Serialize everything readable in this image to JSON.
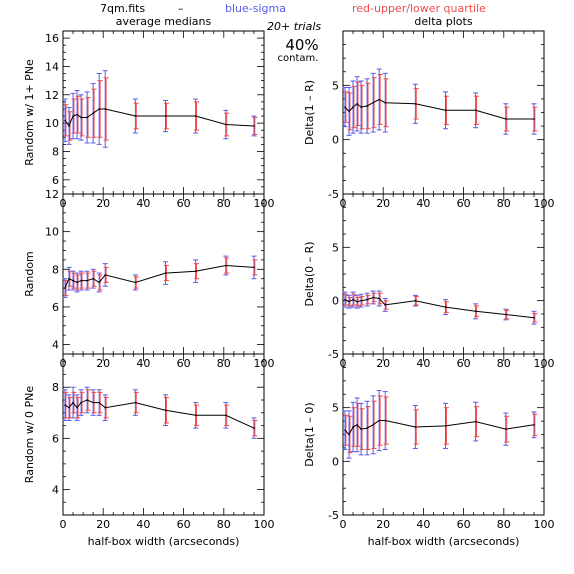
{
  "header": {
    "file": "7qm.fits",
    "dash": "–",
    "blue_note": "blue-sigma",
    "red_note": "red-upper/lower quartile",
    "trials": "20+ trials",
    "contam_pct": "40%",
    "contam_word": "contam."
  },
  "colors": {
    "line": "#000000",
    "sigma": "#5a5af0",
    "quartile": "#f04a4a"
  },
  "chart_data": [
    {
      "type": "line",
      "title": "average medians",
      "ylabel": "Random w/ 1+ PNe",
      "xlabel": "",
      "xlim": [
        0,
        100
      ],
      "ylim": [
        5,
        16.5
      ],
      "xticks": [
        0,
        20,
        40,
        60,
        80,
        100
      ],
      "yticks": [
        6,
        8,
        10,
        12,
        14,
        16
      ],
      "x": [
        1,
        3,
        5,
        7,
        9,
        12,
        15,
        18,
        21,
        36,
        51,
        66,
        81,
        95
      ],
      "y": [
        10.2,
        9.8,
        10.5,
        10.6,
        10.4,
        10.4,
        10.7,
        11.0,
        11.0,
        10.5,
        10.5,
        10.5,
        9.9,
        9.8
      ],
      "sigma": [
        1.5,
        1.3,
        1.6,
        1.7,
        1.6,
        1.8,
        2.1,
        2.5,
        2.7,
        1.2,
        1.1,
        1.2,
        1.0,
        0.7
      ],
      "quartile": [
        1.1,
        1.0,
        1.2,
        1.3,
        1.3,
        1.4,
        1.7,
        2.0,
        2.2,
        0.9,
        0.9,
        1.0,
        0.8,
        0.6
      ]
    },
    {
      "type": "line",
      "title": "delta plots",
      "ylabel": "Delta(1 – R)",
      "xlabel": "",
      "xlim": [
        0,
        100
      ],
      "ylim": [
        -5,
        10
      ],
      "xticks": [
        0,
        20,
        40,
        60,
        80,
        100
      ],
      "yticks": [
        -5,
        0,
        5
      ],
      "x": [
        1,
        3,
        5,
        7,
        9,
        12,
        15,
        18,
        21,
        36,
        51,
        66,
        81,
        95
      ],
      "y": [
        3.0,
        2.6,
        3.0,
        3.3,
        3.0,
        3.1,
        3.4,
        3.7,
        3.4,
        3.3,
        2.7,
        2.7,
        1.9,
        1.9
      ],
      "sigma": [
        1.8,
        2.2,
        2.4,
        2.5,
        2.4,
        2.5,
        2.7,
        2.8,
        2.7,
        1.8,
        1.7,
        1.6,
        1.4,
        1.4
      ],
      "quartile": [
        1.4,
        1.7,
        1.9,
        2.0,
        2.0,
        2.1,
        2.3,
        2.3,
        2.2,
        1.4,
        1.3,
        1.3,
        1.1,
        1.1
      ]
    },
    {
      "type": "line",
      "title": "",
      "ylabel": "Random",
      "xlabel": "",
      "xlim": [
        0,
        100
      ],
      "ylim": [
        3.5,
        12
      ],
      "xticks": [
        0,
        20,
        40,
        60,
        80,
        100
      ],
      "yticks": [
        4,
        6,
        8,
        10,
        12
      ],
      "x": [
        1,
        3,
        5,
        7,
        9,
        12,
        15,
        18,
        21,
        36,
        51,
        66,
        81,
        95
      ],
      "y": [
        7.0,
        7.5,
        7.4,
        7.3,
        7.4,
        7.4,
        7.5,
        7.3,
        7.7,
        7.3,
        7.8,
        7.9,
        8.2,
        8.1
      ],
      "sigma": [
        0.5,
        0.6,
        0.5,
        0.5,
        0.5,
        0.5,
        0.5,
        0.5,
        0.6,
        0.4,
        0.6,
        0.6,
        0.5,
        0.6
      ],
      "quartile": [
        0.4,
        0.4,
        0.4,
        0.4,
        0.4,
        0.4,
        0.4,
        0.4,
        0.4,
        0.3,
        0.4,
        0.4,
        0.4,
        0.4
      ]
    },
    {
      "type": "line",
      "title": "",
      "ylabel": "Delta(0 – R)",
      "xlabel": "",
      "xlim": [
        0,
        100
      ],
      "ylim": [
        -5,
        10
      ],
      "xticks": [
        0,
        20,
        40,
        60,
        80,
        100
      ],
      "yticks": [
        -5,
        0,
        5
      ],
      "x": [
        1,
        3,
        5,
        7,
        9,
        12,
        15,
        18,
        21,
        36,
        51,
        66,
        81,
        95
      ],
      "y": [
        0.1,
        -0.1,
        0.1,
        -0.1,
        0.0,
        0.1,
        0.3,
        0.2,
        -0.4,
        0.0,
        -0.6,
        -1.0,
        -1.3,
        -1.6
      ],
      "sigma": [
        0.7,
        0.6,
        0.7,
        0.6,
        0.6,
        0.6,
        0.6,
        0.7,
        0.6,
        0.5,
        0.7,
        0.7,
        0.5,
        0.6
      ],
      "quartile": [
        0.5,
        0.4,
        0.5,
        0.4,
        0.4,
        0.4,
        0.4,
        0.5,
        0.4,
        0.4,
        0.5,
        0.5,
        0.4,
        0.4
      ]
    },
    {
      "type": "line",
      "title": "",
      "ylabel": "Random w/ 0 PNe",
      "xlabel": "half-box width (arcseconds)",
      "xlim": [
        0,
        100
      ],
      "ylim": [
        3,
        9.3
      ],
      "xticks": [
        0,
        20,
        40,
        60,
        80,
        100
      ],
      "yticks": [
        4,
        6,
        8
      ],
      "x": [
        1,
        3,
        5,
        7,
        9,
        12,
        15,
        18,
        21,
        36,
        51,
        66,
        81,
        95
      ],
      "y": [
        7.3,
        7.2,
        7.4,
        7.2,
        7.4,
        7.5,
        7.4,
        7.4,
        7.2,
        7.4,
        7.1,
        6.9,
        6.9,
        6.4
      ],
      "sigma": [
        0.6,
        0.5,
        0.6,
        0.5,
        0.5,
        0.5,
        0.5,
        0.5,
        0.5,
        0.5,
        0.6,
        0.5,
        0.5,
        0.4
      ],
      "quartile": [
        0.5,
        0.4,
        0.4,
        0.4,
        0.4,
        0.4,
        0.4,
        0.4,
        0.4,
        0.4,
        0.5,
        0.4,
        0.4,
        0.3
      ]
    },
    {
      "type": "line",
      "title": "",
      "ylabel": "Delta(1 – 0)",
      "xlabel": "half-box width (arcseconds)",
      "xlim": [
        0,
        100
      ],
      "ylim": [
        -5,
        10
      ],
      "xticks": [
        0,
        20,
        40,
        60,
        80,
        100
      ],
      "yticks": [
        -5,
        0,
        5
      ],
      "x": [
        1,
        3,
        5,
        7,
        9,
        12,
        15,
        18,
        21,
        36,
        51,
        66,
        81,
        95
      ],
      "y": [
        2.9,
        2.5,
        3.2,
        3.4,
        3.0,
        3.1,
        3.4,
        3.8,
        3.8,
        3.2,
        3.3,
        3.7,
        3.0,
        3.4
      ],
      "sigma": [
        1.8,
        2.2,
        2.3,
        2.5,
        2.4,
        2.5,
        2.7,
        2.8,
        2.7,
        2.0,
        2.1,
        1.8,
        1.5,
        1.2
      ],
      "quartile": [
        1.4,
        1.7,
        1.8,
        2.0,
        1.9,
        2.0,
        2.2,
        2.3,
        2.2,
        1.6,
        1.7,
        1.4,
        1.2,
        1.0
      ]
    }
  ]
}
